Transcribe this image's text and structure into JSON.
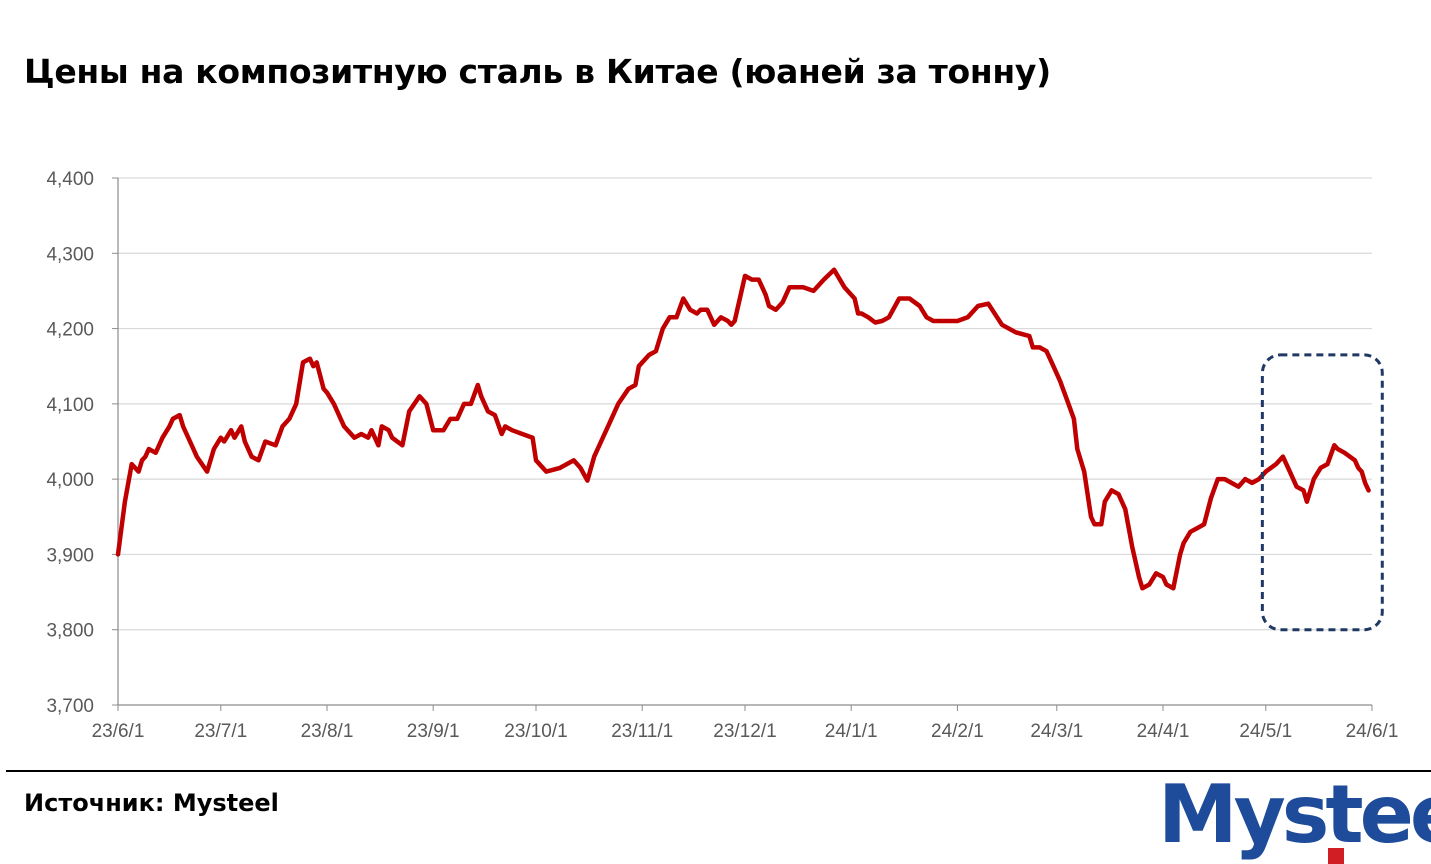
{
  "title": "Цены на композитную сталь в Китае (юаней за тонну)",
  "source": "Источник: Mysteel",
  "logo": {
    "text": "Mysteel",
    "colors": {
      "blue": "#1e4c9a",
      "red": "#d11d24"
    }
  },
  "chart_data": {
    "type": "line",
    "title": "",
    "xlabel": "",
    "ylabel": "",
    "ylim": [
      3700,
      4400
    ],
    "y_ticks": [
      "3,700",
      "3,800",
      "3,900",
      "4,000",
      "4,100",
      "4,200",
      "4,300",
      "4,400"
    ],
    "x_ticks": [
      "23/6/1",
      "23/7/1",
      "23/8/1",
      "23/9/1",
      "23/10/1",
      "23/11/1",
      "23/12/1",
      "24/1/1",
      "24/2/1",
      "24/3/1",
      "24/4/1",
      "24/5/1",
      "24/6/1"
    ],
    "grid": true,
    "line_color": "#c00000",
    "highlight_box": {
      "x_start": "2024-04-30",
      "x_end": "2024-06-04",
      "y_start": 3800,
      "y_end": 4165,
      "color": "#1f3864",
      "style": "dashed"
    },
    "series": [
      {
        "x": [
          "2023-06-01",
          "2023-06-03",
          "2023-06-05",
          "2023-06-07",
          "2023-06-08",
          "2023-06-09",
          "2023-06-10",
          "2023-06-12",
          "2023-06-14",
          "2023-06-16",
          "2023-06-17",
          "2023-06-19",
          "2023-06-20",
          "2023-06-22",
          "2023-06-24",
          "2023-06-27",
          "2023-06-29",
          "2023-07-01",
          "2023-07-02",
          "2023-07-04",
          "2023-07-05",
          "2023-07-07",
          "2023-07-08",
          "2023-07-10",
          "2023-07-12",
          "2023-07-14",
          "2023-07-17",
          "2023-07-19",
          "2023-07-21",
          "2023-07-23",
          "2023-07-25",
          "2023-07-27",
          "2023-07-28",
          "2023-07-29",
          "2023-07-31",
          "2023-08-01",
          "2023-08-03",
          "2023-08-06",
          "2023-08-09",
          "2023-08-11",
          "2023-08-13",
          "2023-08-14",
          "2023-08-16",
          "2023-08-17",
          "2023-08-19",
          "2023-08-20",
          "2023-08-23",
          "2023-08-25",
          "2023-08-28",
          "2023-08-30",
          "2023-09-01",
          "2023-09-04",
          "2023-09-06",
          "2023-09-08",
          "2023-09-10",
          "2023-09-12",
          "2023-09-14",
          "2023-09-15",
          "2023-09-17",
          "2023-09-19",
          "2023-09-21",
          "2023-09-22",
          "2023-09-24",
          "2023-09-27",
          "2023-09-30",
          "2023-10-01",
          "2023-10-04",
          "2023-10-08",
          "2023-10-12",
          "2023-10-14",
          "2023-10-16",
          "2023-10-18",
          "2023-10-20",
          "2023-10-22",
          "2023-10-25",
          "2023-10-28",
          "2023-10-30",
          "2023-10-31",
          "2023-11-03",
          "2023-11-05",
          "2023-11-07",
          "2023-11-09",
          "2023-11-11",
          "2023-11-13",
          "2023-11-15",
          "2023-11-17",
          "2023-11-18",
          "2023-11-20",
          "2023-11-22",
          "2023-11-24",
          "2023-11-26",
          "2023-11-27",
          "2023-11-28",
          "2023-12-01",
          "2023-12-03",
          "2023-12-05",
          "2023-12-07",
          "2023-12-08",
          "2023-12-10",
          "2023-12-12",
          "2023-12-14",
          "2023-12-16",
          "2023-12-18",
          "2023-12-21",
          "2023-12-24",
          "2023-12-27",
          "2023-12-30",
          "2024-01-02",
          "2024-01-03",
          "2024-01-04",
          "2024-01-06",
          "2024-01-08",
          "2024-01-10",
          "2024-01-12",
          "2024-01-15",
          "2024-01-18",
          "2024-01-21",
          "2024-01-23",
          "2024-01-25",
          "2024-01-28",
          "2024-02-01",
          "2024-02-04",
          "2024-02-07",
          "2024-02-10",
          "2024-02-14",
          "2024-02-18",
          "2024-02-22",
          "2024-02-23",
          "2024-02-25",
          "2024-02-27",
          "2024-02-29",
          "2024-03-02",
          "2024-03-04",
          "2024-03-06",
          "2024-03-07",
          "2024-03-09",
          "2024-03-11",
          "2024-03-12",
          "2024-03-14",
          "2024-03-15",
          "2024-03-17",
          "2024-03-19",
          "2024-03-21",
          "2024-03-23",
          "2024-03-25",
          "2024-03-26",
          "2024-03-28",
          "2024-03-30",
          "2024-04-01",
          "2024-04-02",
          "2024-04-04",
          "2024-04-06",
          "2024-04-07",
          "2024-04-09",
          "2024-04-11",
          "2024-04-13",
          "2024-04-15",
          "2024-04-17",
          "2024-04-19",
          "2024-04-21",
          "2024-04-23",
          "2024-04-25",
          "2024-04-27",
          "2024-04-29",
          "2024-05-01",
          "2024-05-04",
          "2024-05-06",
          "2024-05-08",
          "2024-05-10",
          "2024-05-12",
          "2024-05-13",
          "2024-05-15",
          "2024-05-17",
          "2024-05-19",
          "2024-05-21",
          "2024-05-22",
          "2024-05-24",
          "2024-05-27",
          "2024-05-28",
          "2024-05-29",
          "2024-05-30",
          "2024-05-31"
        ],
        "y": [
          3900,
          3970,
          4020,
          4010,
          4025,
          4030,
          4040,
          4035,
          4055,
          4070,
          4080,
          4085,
          4070,
          4050,
          4030,
          4010,
          4040,
          4055,
          4050,
          4065,
          4055,
          4070,
          4050,
          4030,
          4025,
          4050,
          4045,
          4070,
          4080,
          4100,
          4155,
          4160,
          4150,
          4155,
          4120,
          4115,
          4100,
          4070,
          4055,
          4060,
          4055,
          4065,
          4045,
          4070,
          4065,
          4055,
          4045,
          4090,
          4110,
          4100,
          4065,
          4065,
          4080,
          4080,
          4100,
          4100,
          4125,
          4110,
          4090,
          4085,
          4060,
          4070,
          4065,
          4060,
          4055,
          4025,
          4010,
          4015,
          4025,
          4015,
          3998,
          4030,
          4050,
          4070,
          4100,
          4120,
          4125,
          4150,
          4165,
          4170,
          4200,
          4215,
          4215,
          4240,
          4225,
          4220,
          4225,
          4225,
          4205,
          4215,
          4210,
          4205,
          4210,
          4270,
          4265,
          4265,
          4245,
          4230,
          4225,
          4235,
          4255,
          4255,
          4255,
          4250,
          4265,
          4278,
          4255,
          4240,
          4220,
          4220,
          4215,
          4208,
          4210,
          4215,
          4240,
          4240,
          4230,
          4215,
          4210,
          4210,
          4210,
          4215,
          4230,
          4233,
          4205,
          4195,
          4190,
          4175,
          4175,
          4170,
          4150,
          4130,
          4105,
          4080,
          4040,
          4010,
          3950,
          3940,
          3940,
          3970,
          3985,
          3980,
          3960,
          3910,
          3870,
          3855,
          3860,
          3875,
          3870,
          3860,
          3855,
          3900,
          3915,
          3930,
          3935,
          3940,
          3975,
          4000,
          4000,
          3995,
          3990,
          4000,
          3995,
          4000,
          4010,
          4020,
          4030,
          4010,
          3990,
          3985,
          3970,
          4000,
          4015,
          4020,
          4045,
          4040,
          4035,
          4025,
          4015,
          4010,
          3995,
          3985
        ]
      }
    ]
  }
}
